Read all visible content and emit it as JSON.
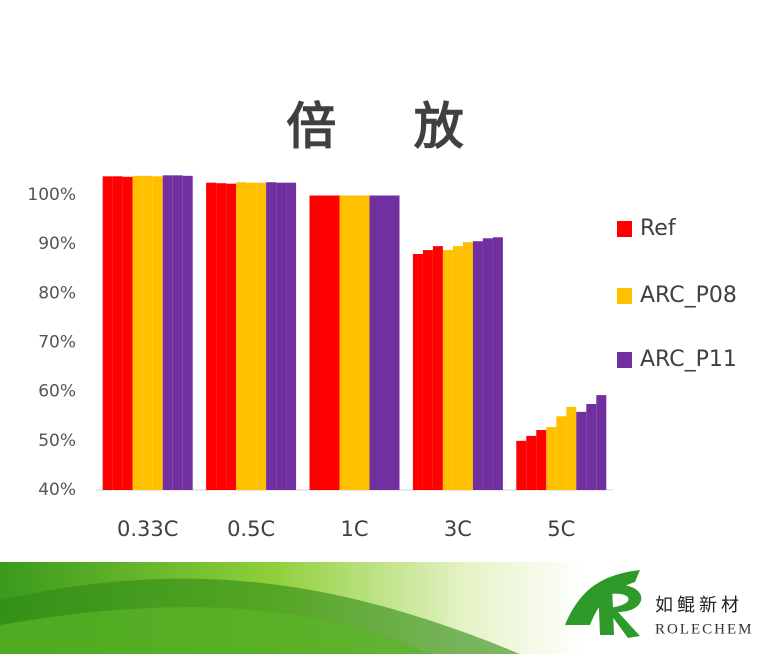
{
  "chart_data": {
    "type": "bar",
    "title": "倍 放",
    "categories": [
      "0.33C",
      "0.5C",
      "1C",
      "3C",
      "5C"
    ],
    "series": [
      {
        "name": "Ref",
        "color": "#ff0000",
        "values": [
          [
            103.8,
            103.8,
            103.7
          ],
          [
            102.5,
            102.4,
            102.3
          ],
          [
            99.9,
            99.9,
            99.9
          ],
          [
            88.0,
            88.8,
            89.6
          ],
          [
            50.0,
            51.0,
            52.2
          ]
        ]
      },
      {
        "name": "ARC_P08",
        "color": "#ffc000",
        "values": [
          [
            103.9,
            103.9,
            103.8
          ],
          [
            102.6,
            102.5,
            102.5
          ],
          [
            99.9,
            99.9,
            99.9
          ],
          [
            88.8,
            89.6,
            90.4
          ],
          [
            52.8,
            55.0,
            56.9
          ]
        ]
      },
      {
        "name": "ARC_P11",
        "color": "#7030a0",
        "values": [
          [
            104.0,
            104.0,
            103.9
          ],
          [
            102.6,
            102.5,
            102.5
          ],
          [
            99.9,
            99.9,
            99.9
          ],
          [
            90.6,
            91.2,
            91.4
          ],
          [
            55.9,
            57.5,
            59.3
          ]
        ]
      }
    ],
    "ylim": [
      40,
      100
    ],
    "yticks": [
      {
        "value": 40,
        "label": "40%"
      },
      {
        "value": 50,
        "label": "50%"
      },
      {
        "value": 60,
        "label": "60%"
      },
      {
        "value": 70,
        "label": "70%"
      },
      {
        "value": 80,
        "label": "80%"
      },
      {
        "value": 90,
        "label": "90%"
      },
      {
        "value": 100,
        "label": "100%"
      }
    ],
    "grid": false,
    "legend": "right"
  },
  "logo": {
    "name_cn": "如鲲新材",
    "name_en": "ROLECHEM"
  }
}
